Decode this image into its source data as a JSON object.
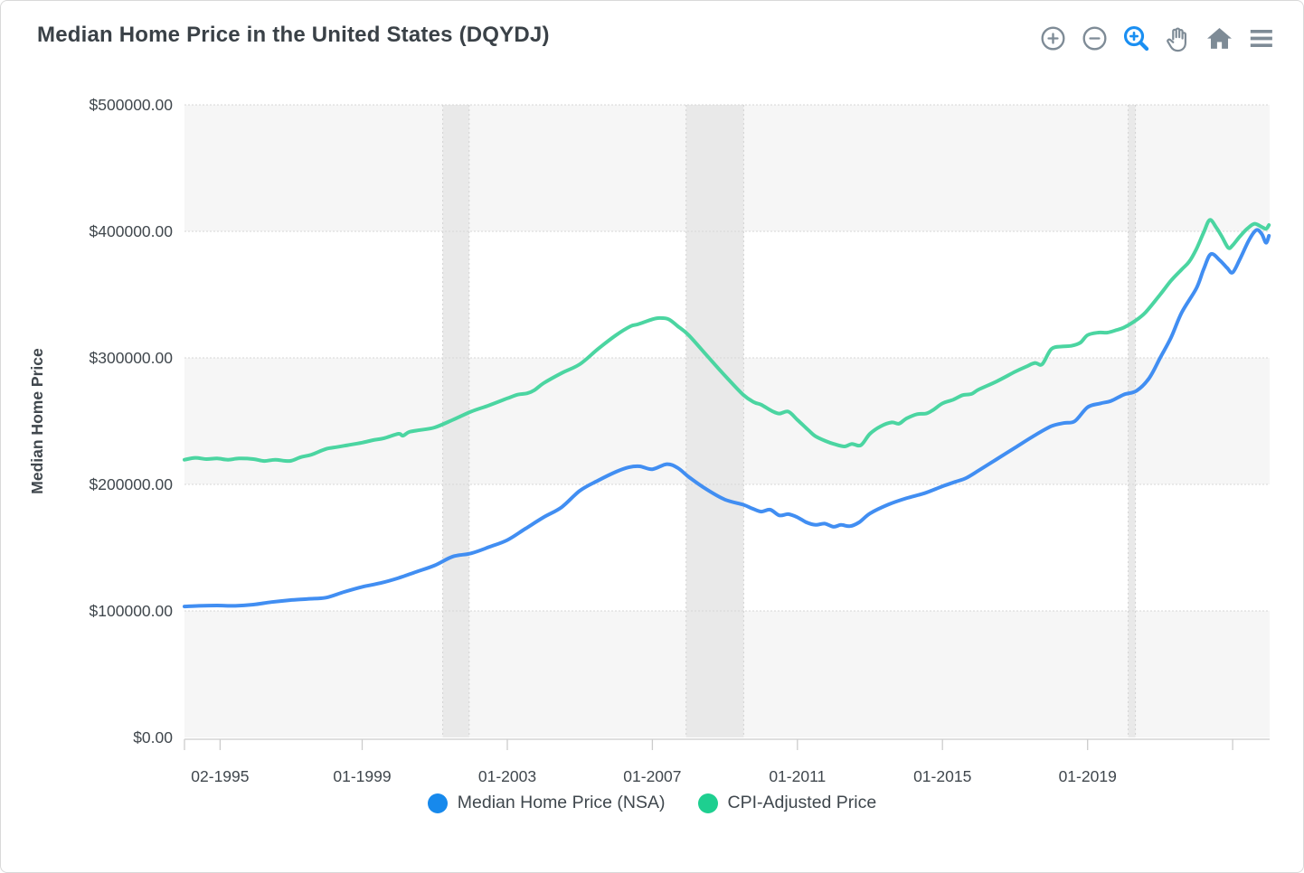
{
  "header": {
    "title": "Median Home Price in the United States (DQYDJ)"
  },
  "toolbar": {
    "icons": [
      "zoom-in",
      "zoom-out",
      "zoom-select",
      "pan",
      "reset-home",
      "menu"
    ],
    "active_icon": "zoom-select",
    "gray": "#7e8b96",
    "active_blue": "#1a8ff2"
  },
  "colors": {
    "line_blue": "#418ef2",
    "dot_blue": "#1789ec",
    "line_green": "#4bd5a1",
    "dot_green": "#1ecf90",
    "grid": "#d7d7d7",
    "interlaced_band": "#f6f6f6",
    "recession_band": "#e9e9e9",
    "axis": "#cccccc",
    "tick_text": "#40474d",
    "title_text": "#3a4147"
  },
  "chart_data": {
    "type": "line",
    "title": "Median Home Price in the United States (DQYDJ)",
    "xlabel": "",
    "ylabel": "Median Home Price",
    "xlim": [
      1994.1,
      2024.02
    ],
    "ylim": [
      0,
      500000
    ],
    "grid": true,
    "legend_position": "bottom-center",
    "x_ticks": [
      {
        "label": "",
        "t": 1994.1
      },
      {
        "label": "02-1995",
        "t": 1995.083
      },
      {
        "label": "01-1999",
        "t": 1999.0
      },
      {
        "label": "01-2003",
        "t": 2003.0
      },
      {
        "label": "01-2007",
        "t": 2007.0
      },
      {
        "label": "01-2011",
        "t": 2011.0
      },
      {
        "label": "01-2015",
        "t": 2015.0
      },
      {
        "label": "01-2019",
        "t": 2019.0
      },
      {
        "label": "",
        "t": 2023.0
      }
    ],
    "y_ticks": [
      {
        "label": "$0.00",
        "v": 0
      },
      {
        "label": "$100000.00",
        "v": 100000
      },
      {
        "label": "$200000.00",
        "v": 200000
      },
      {
        "label": "$300000.00",
        "v": 300000
      },
      {
        "label": "$400000.00",
        "v": 400000
      },
      {
        "label": "$500000.00",
        "v": 500000
      }
    ],
    "interlaced_bands": [
      [
        0,
        100000
      ],
      [
        200000,
        300000
      ],
      [
        400000,
        500000
      ]
    ],
    "recession_bands": [
      [
        2001.22,
        2001.95
      ],
      [
        2007.93,
        2009.52
      ],
      [
        2020.12,
        2020.32
      ]
    ],
    "series": [
      {
        "name": "Median Home Price (NSA)",
        "color": "#418ef2",
        "dot_color": "#1789ec",
        "x": [
          1994.1,
          1994.5,
          1995.0,
          1995.5,
          1996.0,
          1996.5,
          1997.0,
          1997.5,
          1998.0,
          1998.5,
          1999.0,
          1999.5,
          2000.0,
          2000.5,
          2001.0,
          2001.5,
          2002.0,
          2002.5,
          2003.0,
          2003.5,
          2004.0,
          2004.5,
          2005.0,
          2005.5,
          2006.0,
          2006.35,
          2006.65,
          2007.0,
          2007.4,
          2007.7,
          2008.0,
          2008.5,
          2009.0,
          2009.5,
          2009.75,
          2010.0,
          2010.25,
          2010.5,
          2010.75,
          2011.0,
          2011.25,
          2011.5,
          2011.75,
          2012.0,
          2012.2,
          2012.45,
          2012.7,
          2013.0,
          2013.5,
          2014.0,
          2014.5,
          2015.0,
          2015.35,
          2015.65,
          2016.0,
          2016.5,
          2017.0,
          2017.5,
          2018.0,
          2018.35,
          2018.65,
          2019.0,
          2019.35,
          2019.65,
          2020.0,
          2020.35,
          2020.7,
          2021.0,
          2021.3,
          2021.6,
          2022.0,
          2022.2,
          2022.4,
          2022.65,
          2022.85,
          2023.0,
          2023.2,
          2023.45,
          2023.65,
          2023.8,
          2023.92,
          2024.0
        ],
        "y": [
          103500,
          104000,
          104300,
          104000,
          105000,
          107000,
          108500,
          109500,
          110500,
          115000,
          119000,
          122000,
          126000,
          131000,
          136000,
          143000,
          145500,
          150500,
          156000,
          165000,
          174000,
          182000,
          195000,
          203000,
          210000,
          213500,
          214300,
          212000,
          216000,
          213000,
          206000,
          196000,
          188000,
          184000,
          181000,
          178500,
          180000,
          175500,
          176500,
          174000,
          170000,
          168000,
          169000,
          166500,
          168000,
          167000,
          170000,
          177000,
          184000,
          189000,
          193000,
          198500,
          202000,
          205000,
          211000,
          220000,
          229000,
          238000,
          246000,
          248500,
          250000,
          261000,
          264000,
          266000,
          271000,
          274000,
          284000,
          300000,
          316000,
          336000,
          355000,
          370000,
          382000,
          377000,
          371000,
          367500,
          378000,
          393000,
          401000,
          398000,
          391000,
          396500
        ]
      },
      {
        "name": "CPI-Adjusted Price",
        "color": "#4bd5a1",
        "dot_color": "#1ecf90",
        "x": [
          1994.1,
          1994.4,
          1994.7,
          1995.0,
          1995.3,
          1995.6,
          1996.0,
          1996.3,
          1996.6,
          1997.0,
          1997.3,
          1997.6,
          1998.0,
          1998.3,
          1998.6,
          1999.0,
          1999.3,
          1999.6,
          2000.0,
          2000.12,
          2000.3,
          2000.6,
          2001.0,
          2001.5,
          2002.0,
          2002.5,
          2003.0,
          2003.3,
          2003.55,
          2003.75,
          2004.0,
          2004.5,
          2005.0,
          2005.5,
          2006.0,
          2006.4,
          2006.6,
          2007.0,
          2007.2,
          2007.45,
          2007.7,
          2008.0,
          2008.5,
          2009.0,
          2009.5,
          2009.8,
          2010.0,
          2010.3,
          2010.5,
          2010.75,
          2011.0,
          2011.3,
          2011.5,
          2011.8,
          2012.0,
          2012.3,
          2012.5,
          2012.75,
          2013.0,
          2013.3,
          2013.6,
          2013.8,
          2014.0,
          2014.3,
          2014.55,
          2014.75,
          2015.0,
          2015.3,
          2015.55,
          2015.8,
          2016.0,
          2016.5,
          2017.0,
          2017.3,
          2017.55,
          2017.75,
          2018.0,
          2018.3,
          2018.55,
          2018.8,
          2019.0,
          2019.3,
          2019.55,
          2019.8,
          2020.0,
          2020.3,
          2020.6,
          2021.0,
          2021.3,
          2021.6,
          2021.8,
          2022.0,
          2022.2,
          2022.37,
          2022.55,
          2022.7,
          2022.88,
          2023.0,
          2023.2,
          2023.4,
          2023.6,
          2023.8,
          2023.92,
          2024.0
        ],
        "y": [
          219500,
          221000,
          220000,
          220500,
          219500,
          220500,
          220000,
          218500,
          219500,
          218500,
          221500,
          223500,
          228000,
          229500,
          231000,
          233000,
          235000,
          236500,
          240000,
          238500,
          241500,
          243000,
          245000,
          251000,
          257500,
          262500,
          268000,
          271000,
          272000,
          274500,
          280000,
          288000,
          295000,
          307000,
          318000,
          325000,
          326500,
          330500,
          331500,
          330500,
          325000,
          318000,
          302000,
          286000,
          271000,
          265000,
          263000,
          258000,
          256000,
          257500,
          251000,
          243000,
          238000,
          234000,
          232000,
          230000,
          232000,
          231000,
          240000,
          246000,
          249000,
          248000,
          252000,
          255500,
          256000,
          259000,
          264000,
          267000,
          270500,
          271500,
          275000,
          281500,
          289000,
          293000,
          296000,
          295000,
          307000,
          309000,
          309500,
          312000,
          318000,
          320000,
          320000,
          322000,
          324000,
          329000,
          336000,
          350000,
          361000,
          370000,
          376000,
          386000,
          399000,
          409000,
          403000,
          396000,
          387000,
          389000,
          396000,
          402000,
          406000,
          403500,
          402000,
          405000
        ]
      }
    ]
  }
}
